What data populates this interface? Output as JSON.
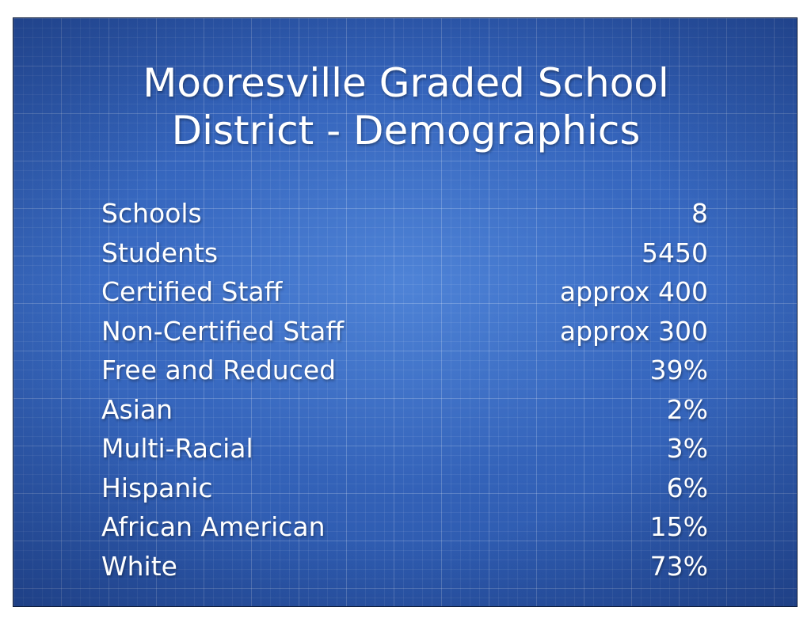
{
  "slide": {
    "title_line1": "Mooresville Graded School",
    "title_line2": "District - Demographics",
    "rows": [
      {
        "label": "Schools",
        "value": "8"
      },
      {
        "label": "Students",
        "value": "5450"
      },
      {
        "label": "Certified Staff",
        "value": "approx 400"
      },
      {
        "label": "Non-Certified Staff",
        "value": "approx 300"
      },
      {
        "label": "Free and Reduced",
        "value": "39%"
      },
      {
        "label": "Asian",
        "value": "2%"
      },
      {
        "label": "Multi-Racial",
        "value": "3%"
      },
      {
        "label": "Hispanic",
        "value": "6%"
      },
      {
        "label": "African American",
        "value": "15%"
      },
      {
        "label": "White",
        "value": "73%"
      }
    ]
  },
  "colors": {
    "background": "#3a6cc4",
    "text": "#ffffff",
    "grid": "#ffffff"
  }
}
